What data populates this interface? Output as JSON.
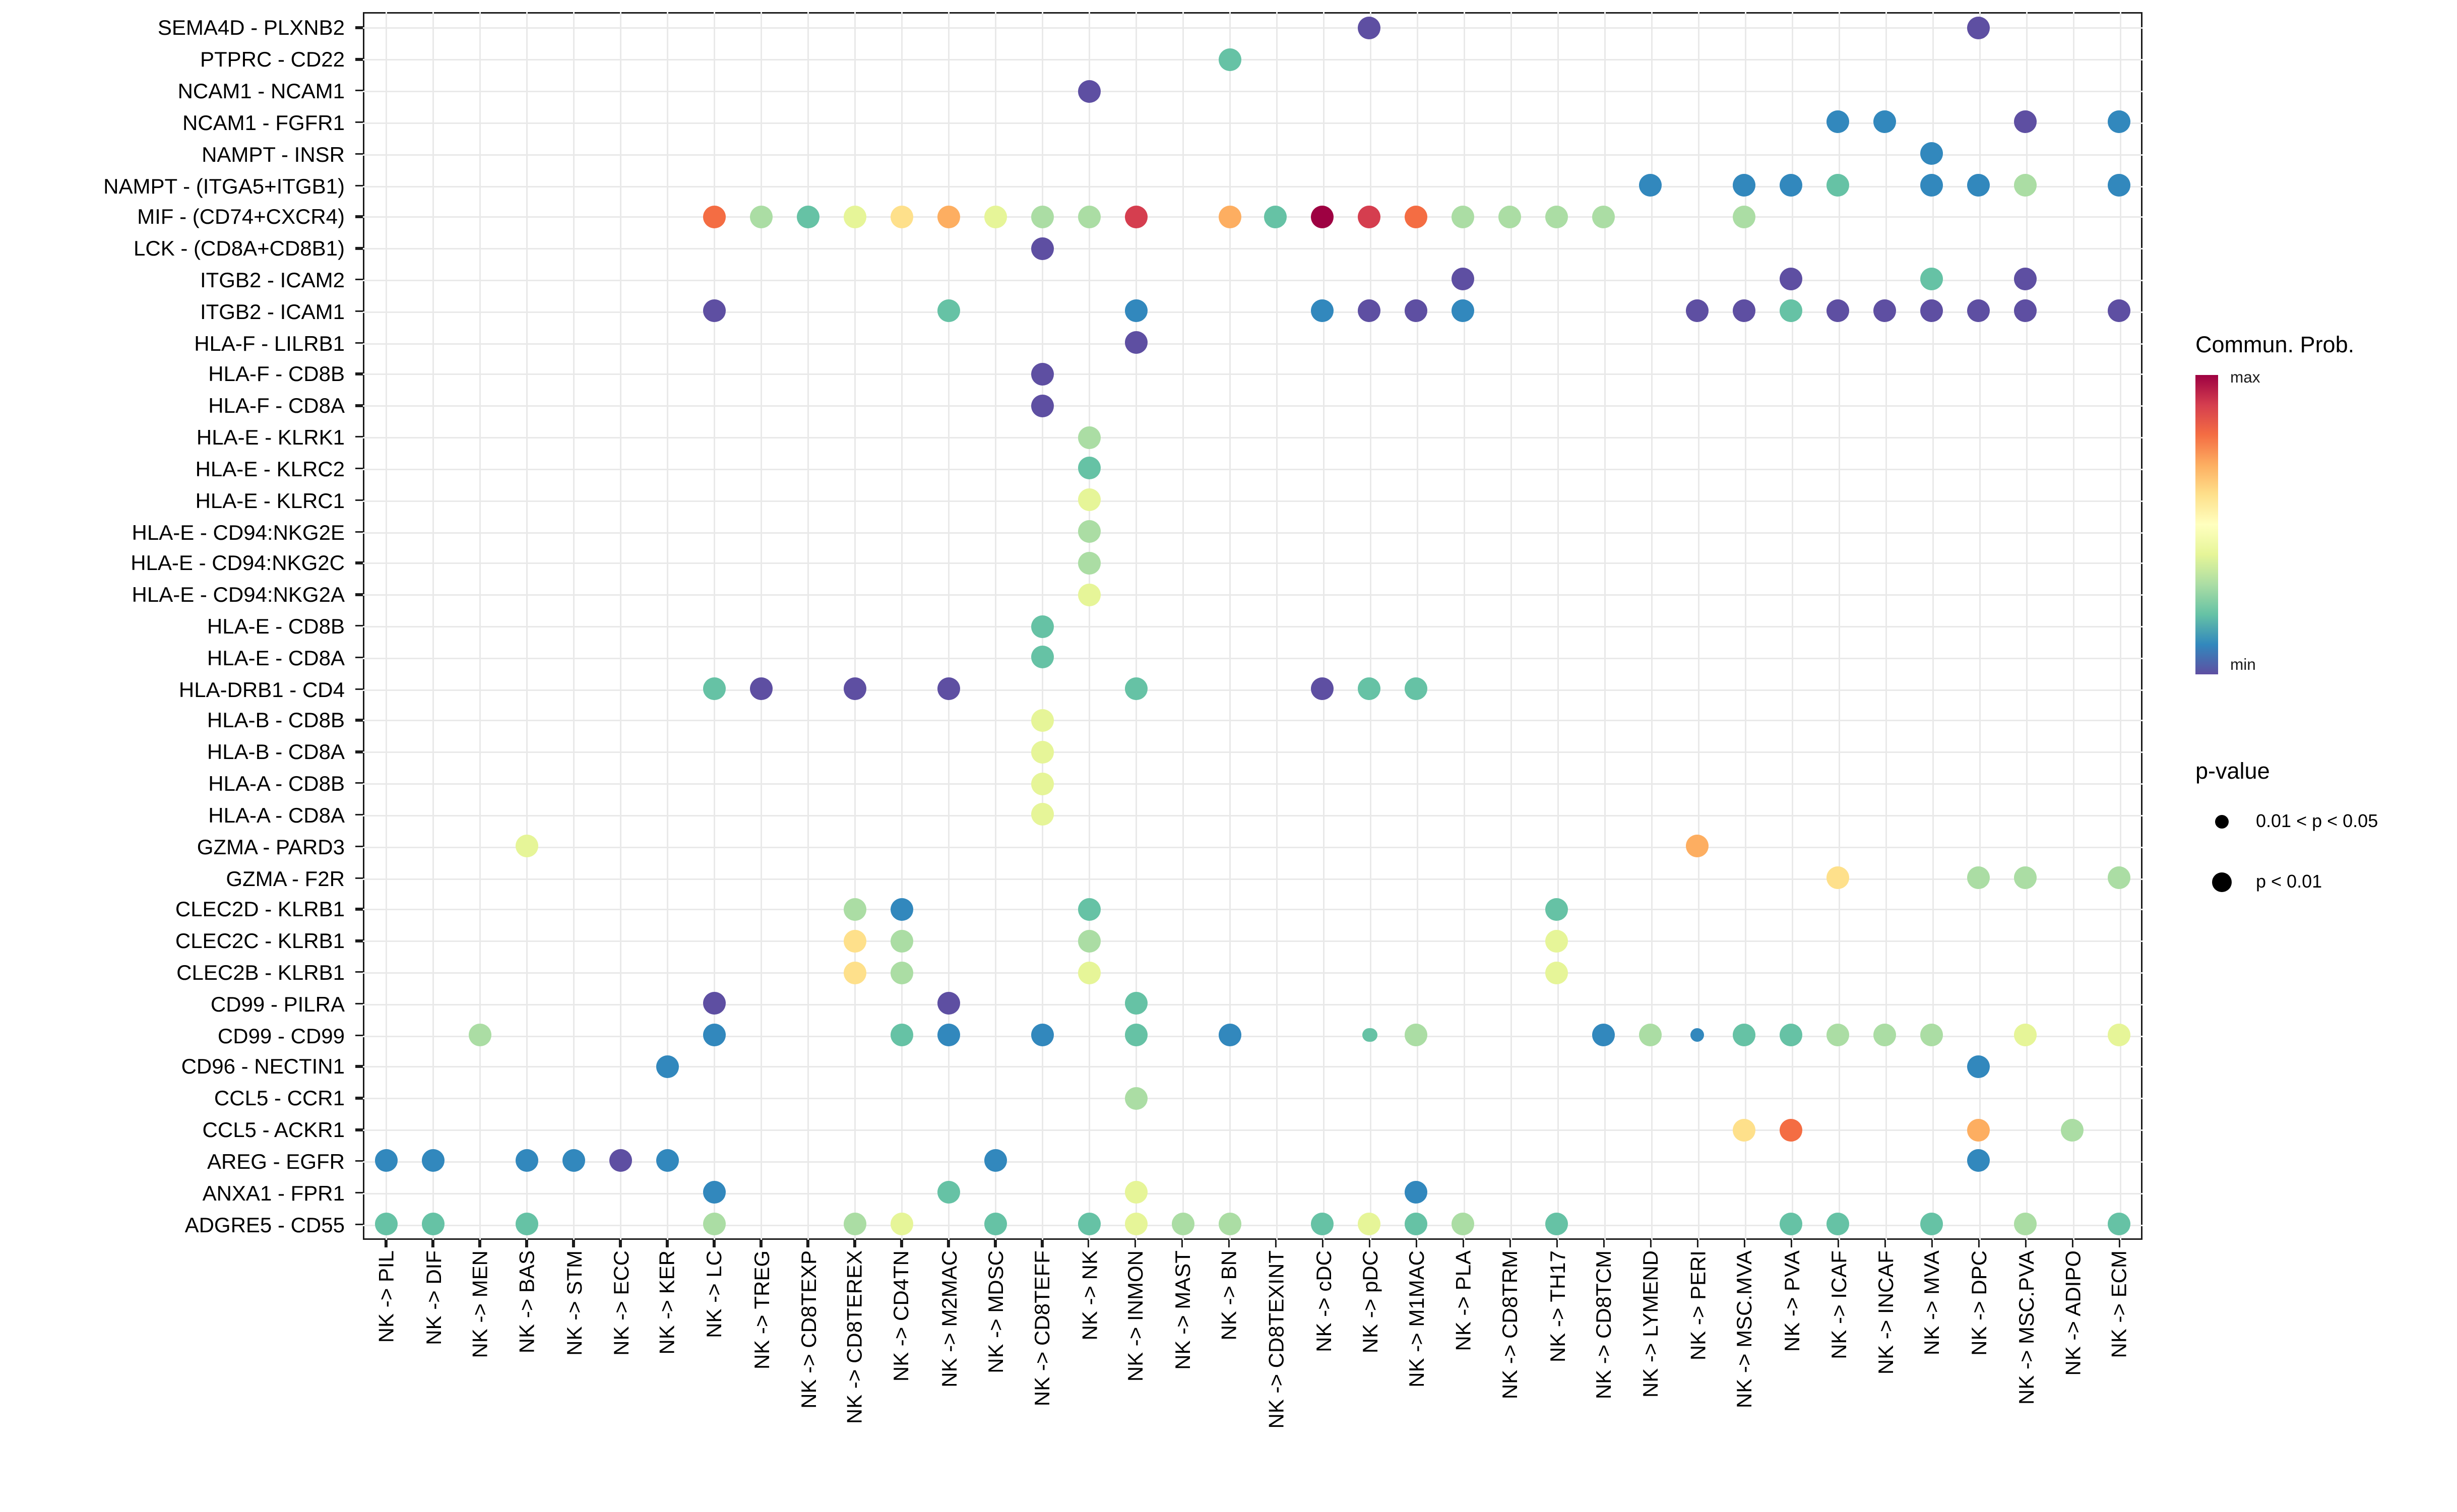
{
  "legend": {
    "colorbar_title": "Commun. Prob.",
    "colorbar_max_label": "max",
    "colorbar_min_label": "min",
    "pvalue_title": "p-value",
    "pvalue_items": [
      {
        "label": "0.01 < p < 0.05",
        "size": "small"
      },
      {
        "label": "p < 0.01",
        "size": "large"
      }
    ]
  },
  "chart_data": {
    "type": "scatter",
    "subtype": "bubble-dotplot",
    "title": "",
    "xlabel": "",
    "ylabel": "",
    "grid": true,
    "legend_position": "right",
    "x_categories": [
      "NK -> PIL",
      "NK -> DIF",
      "NK -> MEN",
      "NK -> BAS",
      "NK -> STM",
      "NK -> ECC",
      "NK -> KER",
      "NK -> LC",
      "NK -> TREG",
      "NK -> CD8TEXP",
      "NK -> CD8TEREX",
      "NK -> CD4TN",
      "NK -> M2MAC",
      "NK -> MDSC",
      "NK -> CD8TEFF",
      "NK -> NK",
      "NK -> INMON",
      "NK -> MAST",
      "NK -> BN",
      "NK -> CD8TEXINT",
      "NK -> cDC",
      "NK -> pDC",
      "NK -> M1MAC",
      "NK -> PLA",
      "NK -> CD8TRM",
      "NK -> TH17",
      "NK -> CD8TCM",
      "NK -> LYMEND",
      "NK -> PERI",
      "NK -> MSC.MVA",
      "NK -> PVA",
      "NK -> ICAF",
      "NK -> INCAF",
      "NK -> MVA",
      "NK -> DPC",
      "NK -> MSC.PVA",
      "NK -> ADIPO",
      "NK -> ECM"
    ],
    "y_categories": [
      "SEMA4D - PLXNB2",
      "PTPRC - CD22",
      "NCAM1 - NCAM1",
      "NCAM1 - FGFR1",
      "NAMPT - INSR",
      "NAMPT - (ITGA5+ITGB1)",
      "MIF - (CD74+CXCR4)",
      "LCK - (CD8A+CD8B1)",
      "ITGB2 - ICAM2",
      "ITGB2 - ICAM1",
      "HLA-F - LILRB1",
      "HLA-F - CD8B",
      "HLA-F - CD8A",
      "HLA-E - KLRK1",
      "HLA-E - KLRC2",
      "HLA-E - KLRC1",
      "HLA-E - CD94:NKG2E",
      "HLA-E - CD94:NKG2C",
      "HLA-E - CD94:NKG2A",
      "HLA-E - CD8B",
      "HLA-E - CD8A",
      "HLA-DRB1 - CD4",
      "HLA-B - CD8B",
      "HLA-B - CD8A",
      "HLA-A - CD8B",
      "HLA-A - CD8A",
      "GZMA - PARD3",
      "GZMA - F2R",
      "CLEC2D - KLRB1",
      "CLEC2C - KLRB1",
      "CLEC2B - KLRB1",
      "CD99 - PILRA",
      "CD99 - CD99",
      "CD96 - NECTIN1",
      "CCL5 - CCR1",
      "CCL5 - ACKR1",
      "AREG - EGFR",
      "ANXA1 - FPR1",
      "ADGRE5 - CD55"
    ],
    "color_scale": {
      "label": "Commun. Prob.",
      "min_label": "min",
      "max_label": "max",
      "min_color": "#5E4FA2",
      "max_color": "#9E0142"
    },
    "palette": [
      "#5E4FA2",
      "#3288BD",
      "#66C2A5",
      "#ABDDA4",
      "#E6F598",
      "#FEE08B",
      "#FDAE61",
      "#F46D43",
      "#D53E4F",
      "#9E0142"
    ],
    "colorbar_stops": [
      "#9E0142",
      "#D53E4F",
      "#F46D43",
      "#FDAE61",
      "#FEE08B",
      "#FFFFBF",
      "#E6F598",
      "#ABDDA4",
      "#66C2A5",
      "#3288BD",
      "#5E4FA2"
    ],
    "size_legend": {
      "small": "0.01 < p < 0.05",
      "large": "p < 0.01"
    },
    "points_format": "[y_category_index, x_category_index, palette_color_index(0=min..9=max), size_flag(1=p<0.01, 0=0.01<p<0.05)]",
    "points": [
      [
        0,
        21,
        0,
        1
      ],
      [
        0,
        34,
        0,
        1
      ],
      [
        1,
        18,
        2,
        1
      ],
      [
        2,
        15,
        0,
        1
      ],
      [
        3,
        31,
        1,
        1
      ],
      [
        3,
        32,
        1,
        1
      ],
      [
        3,
        35,
        0,
        1
      ],
      [
        3,
        37,
        1,
        1
      ],
      [
        4,
        33,
        1,
        1
      ],
      [
        5,
        27,
        1,
        1
      ],
      [
        5,
        29,
        1,
        1
      ],
      [
        5,
        30,
        1,
        1
      ],
      [
        5,
        31,
        2,
        1
      ],
      [
        5,
        33,
        1,
        1
      ],
      [
        5,
        34,
        1,
        1
      ],
      [
        5,
        35,
        3,
        1
      ],
      [
        5,
        37,
        1,
        1
      ],
      [
        6,
        7,
        7,
        1
      ],
      [
        6,
        8,
        3,
        1
      ],
      [
        6,
        9,
        2,
        1
      ],
      [
        6,
        10,
        4,
        1
      ],
      [
        6,
        11,
        5,
        1
      ],
      [
        6,
        12,
        6,
        1
      ],
      [
        6,
        13,
        4,
        1
      ],
      [
        6,
        14,
        3,
        1
      ],
      [
        6,
        15,
        3,
        1
      ],
      [
        6,
        16,
        8,
        1
      ],
      [
        6,
        18,
        6,
        1
      ],
      [
        6,
        19,
        2,
        1
      ],
      [
        6,
        20,
        9,
        1
      ],
      [
        6,
        21,
        8,
        1
      ],
      [
        6,
        22,
        7,
        1
      ],
      [
        6,
        23,
        3,
        1
      ],
      [
        6,
        24,
        3,
        1
      ],
      [
        6,
        25,
        3,
        1
      ],
      [
        6,
        26,
        3,
        1
      ],
      [
        6,
        29,
        3,
        1
      ],
      [
        7,
        14,
        0,
        1
      ],
      [
        8,
        23,
        0,
        1
      ],
      [
        8,
        30,
        0,
        1
      ],
      [
        8,
        33,
        2,
        1
      ],
      [
        8,
        35,
        0,
        1
      ],
      [
        9,
        7,
        0,
        1
      ],
      [
        9,
        12,
        2,
        1
      ],
      [
        9,
        16,
        1,
        1
      ],
      [
        9,
        20,
        1,
        1
      ],
      [
        9,
        21,
        0,
        1
      ],
      [
        9,
        22,
        0,
        1
      ],
      [
        9,
        23,
        1,
        1
      ],
      [
        9,
        28,
        0,
        1
      ],
      [
        9,
        29,
        0,
        1
      ],
      [
        9,
        30,
        2,
        1
      ],
      [
        9,
        31,
        0,
        1
      ],
      [
        9,
        32,
        0,
        1
      ],
      [
        9,
        33,
        0,
        1
      ],
      [
        9,
        34,
        0,
        1
      ],
      [
        9,
        35,
        0,
        1
      ],
      [
        9,
        37,
        0,
        1
      ],
      [
        10,
        16,
        0,
        1
      ],
      [
        11,
        14,
        0,
        1
      ],
      [
        12,
        14,
        0,
        1
      ],
      [
        13,
        15,
        3,
        1
      ],
      [
        14,
        15,
        2,
        1
      ],
      [
        15,
        15,
        4,
        1
      ],
      [
        16,
        15,
        3,
        1
      ],
      [
        17,
        15,
        3,
        1
      ],
      [
        18,
        15,
        4,
        1
      ],
      [
        19,
        14,
        2,
        1
      ],
      [
        20,
        14,
        2,
        1
      ],
      [
        21,
        7,
        2,
        1
      ],
      [
        21,
        8,
        0,
        1
      ],
      [
        21,
        10,
        0,
        1
      ],
      [
        21,
        12,
        0,
        1
      ],
      [
        21,
        16,
        2,
        1
      ],
      [
        21,
        20,
        0,
        1
      ],
      [
        21,
        21,
        2,
        1
      ],
      [
        21,
        22,
        2,
        1
      ],
      [
        22,
        14,
        4,
        1
      ],
      [
        23,
        14,
        4,
        1
      ],
      [
        24,
        14,
        4,
        1
      ],
      [
        25,
        14,
        4,
        1
      ],
      [
        26,
        3,
        4,
        1
      ],
      [
        26,
        28,
        6,
        1
      ],
      [
        27,
        31,
        5,
        1
      ],
      [
        27,
        34,
        3,
        1
      ],
      [
        27,
        35,
        3,
        1
      ],
      [
        27,
        37,
        3,
        1
      ],
      [
        28,
        10,
        3,
        1
      ],
      [
        28,
        11,
        1,
        1
      ],
      [
        28,
        15,
        2,
        1
      ],
      [
        28,
        25,
        2,
        1
      ],
      [
        29,
        10,
        5,
        1
      ],
      [
        29,
        11,
        3,
        1
      ],
      [
        29,
        15,
        3,
        1
      ],
      [
        29,
        25,
        4,
        1
      ],
      [
        30,
        10,
        5,
        1
      ],
      [
        30,
        11,
        3,
        1
      ],
      [
        30,
        15,
        4,
        1
      ],
      [
        30,
        25,
        4,
        1
      ],
      [
        31,
        7,
        0,
        1
      ],
      [
        31,
        12,
        0,
        1
      ],
      [
        31,
        16,
        2,
        1
      ],
      [
        32,
        2,
        3,
        1
      ],
      [
        32,
        7,
        1,
        1
      ],
      [
        32,
        11,
        2,
        1
      ],
      [
        32,
        12,
        1,
        1
      ],
      [
        32,
        14,
        1,
        1
      ],
      [
        32,
        16,
        2,
        1
      ],
      [
        32,
        18,
        1,
        1
      ],
      [
        32,
        21,
        2,
        0
      ],
      [
        32,
        22,
        3,
        1
      ],
      [
        32,
        26,
        1,
        1
      ],
      [
        32,
        27,
        3,
        1
      ],
      [
        32,
        28,
        1,
        0
      ],
      [
        32,
        29,
        2,
        1
      ],
      [
        32,
        30,
        2,
        1
      ],
      [
        32,
        31,
        3,
        1
      ],
      [
        32,
        32,
        3,
        1
      ],
      [
        32,
        33,
        3,
        1
      ],
      [
        32,
        35,
        4,
        1
      ],
      [
        32,
        37,
        4,
        1
      ],
      [
        33,
        6,
        1,
        1
      ],
      [
        33,
        34,
        1,
        1
      ],
      [
        34,
        16,
        3,
        1
      ],
      [
        35,
        29,
        5,
        1
      ],
      [
        35,
        30,
        7,
        1
      ],
      [
        35,
        34,
        6,
        1
      ],
      [
        35,
        36,
        3,
        1
      ],
      [
        36,
        0,
        1,
        1
      ],
      [
        36,
        1,
        1,
        1
      ],
      [
        36,
        3,
        1,
        1
      ],
      [
        36,
        4,
        1,
        1
      ],
      [
        36,
        5,
        0,
        1
      ],
      [
        36,
        6,
        1,
        1
      ],
      [
        36,
        13,
        1,
        1
      ],
      [
        36,
        34,
        1,
        1
      ],
      [
        37,
        7,
        1,
        1
      ],
      [
        37,
        12,
        2,
        1
      ],
      [
        37,
        16,
        4,
        1
      ],
      [
        37,
        22,
        1,
        1
      ],
      [
        38,
        0,
        2,
        1
      ],
      [
        38,
        1,
        2,
        1
      ],
      [
        38,
        3,
        2,
        1
      ],
      [
        38,
        7,
        3,
        1
      ],
      [
        38,
        10,
        3,
        1
      ],
      [
        38,
        11,
        4,
        1
      ],
      [
        38,
        13,
        2,
        1
      ],
      [
        38,
        15,
        2,
        1
      ],
      [
        38,
        16,
        4,
        1
      ],
      [
        38,
        17,
        3,
        1
      ],
      [
        38,
        18,
        3,
        1
      ],
      [
        38,
        20,
        2,
        1
      ],
      [
        38,
        21,
        4,
        1
      ],
      [
        38,
        22,
        2,
        1
      ],
      [
        38,
        23,
        3,
        1
      ],
      [
        38,
        25,
        2,
        1
      ],
      [
        38,
        30,
        2,
        1
      ],
      [
        38,
        31,
        2,
        1
      ],
      [
        38,
        33,
        2,
        1
      ],
      [
        38,
        35,
        3,
        1
      ],
      [
        38,
        37,
        2,
        1
      ]
    ]
  }
}
